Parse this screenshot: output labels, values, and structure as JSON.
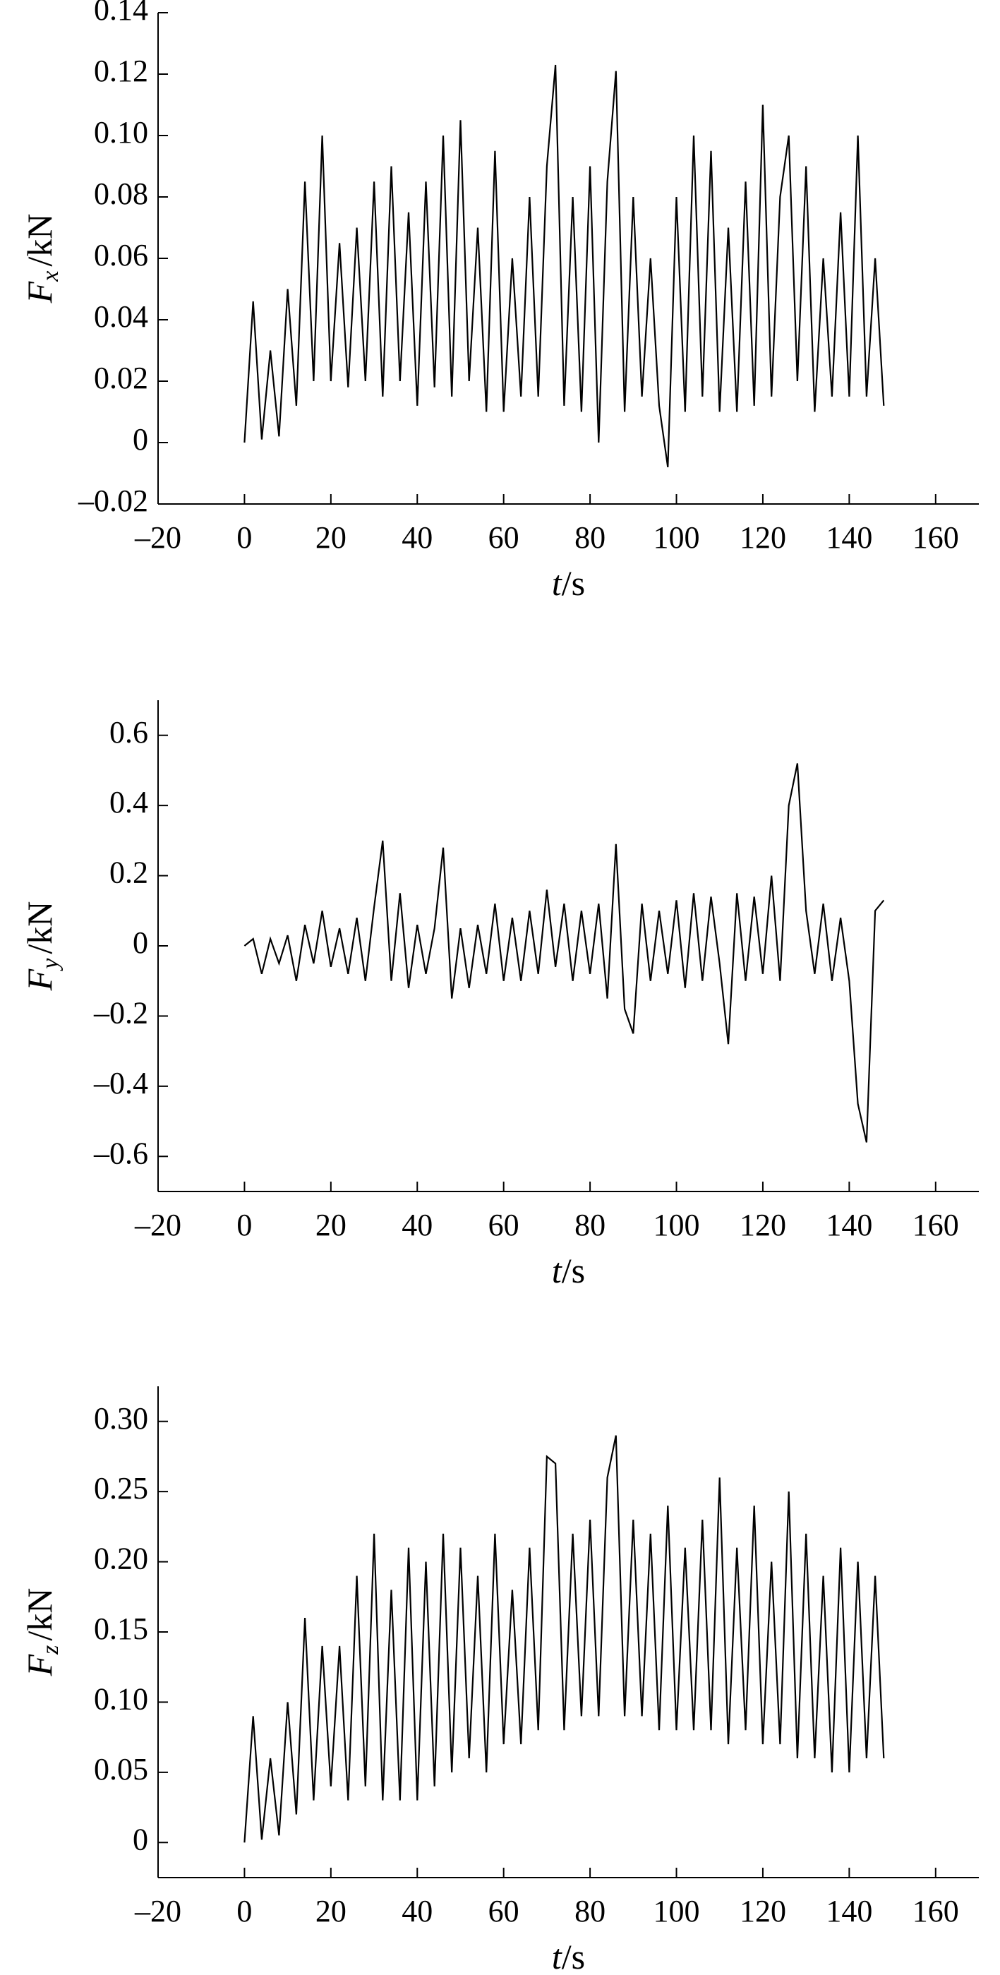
{
  "chart_data": [
    {
      "type": "line",
      "color": "#000000",
      "y_label": {
        "symbol": "F",
        "subscript": "x",
        "unit": "/kN"
      },
      "x_label": {
        "symbol": "t",
        "unit": "/s"
      },
      "xlim": [
        -20,
        170
      ],
      "ylim": [
        -0.02,
        0.14
      ],
      "xticks": [
        {
          "value": -20,
          "label": "–20"
        },
        0,
        20,
        40,
        60,
        80,
        100,
        120,
        140,
        160
      ],
      "yticks": [
        {
          "value": -0.02,
          "label": "–0.02"
        },
        0,
        0.02,
        0.04,
        0.06,
        0.08,
        {
          "value": 0.1,
          "label": "0.10"
        },
        0.12,
        0.14
      ],
      "x": [
        0,
        2,
        4,
        6,
        8,
        10,
        12,
        14,
        16,
        18,
        20,
        22,
        24,
        26,
        28,
        30,
        32,
        34,
        36,
        38,
        40,
        42,
        44,
        46,
        48,
        50,
        52,
        54,
        56,
        58,
        60,
        62,
        64,
        66,
        68,
        70,
        72,
        74,
        76,
        78,
        80,
        82,
        84,
        86,
        88,
        90,
        92,
        94,
        96,
        98,
        100,
        102,
        104,
        106,
        108,
        110,
        112,
        114,
        116,
        118,
        120,
        122,
        124,
        126,
        128,
        130,
        132,
        134,
        136,
        138,
        140,
        142,
        144,
        146,
        148
      ],
      "values": [
        0,
        0.046,
        0.001,
        0.03,
        0.002,
        0.05,
        0.012,
        0.085,
        0.02,
        0.1,
        0.02,
        0.065,
        0.018,
        0.07,
        0.02,
        0.085,
        0.015,
        0.09,
        0.02,
        0.075,
        0.012,
        0.085,
        0.018,
        0.1,
        0.015,
        0.105,
        0.02,
        0.07,
        0.01,
        0.095,
        0.01,
        0.06,
        0.015,
        0.08,
        0.015,
        0.09,
        0.123,
        0.012,
        0.08,
        0.01,
        0.09,
        0.0,
        0.085,
        0.121,
        0.01,
        0.08,
        0.015,
        0.06,
        0.012,
        -0.008,
        0.08,
        0.01,
        0.1,
        0.015,
        0.095,
        0.01,
        0.07,
        0.01,
        0.085,
        0.012,
        0.11,
        0.015,
        0.08,
        0.1,
        0.02,
        0.09,
        0.01,
        0.06,
        0.015,
        0.075,
        0.015,
        0.1,
        0.015,
        0.06,
        0.012
      ]
    },
    {
      "type": "line",
      "color": "#000000",
      "y_label": {
        "symbol": "F",
        "subscript": "y",
        "unit": "/kN"
      },
      "x_label": {
        "symbol": "t",
        "unit": "/s"
      },
      "xlim": [
        -20,
        170
      ],
      "ylim": [
        -0.7,
        0.7
      ],
      "xticks": [
        {
          "value": -20,
          "label": "–20"
        },
        0,
        20,
        40,
        60,
        80,
        100,
        120,
        140,
        160
      ],
      "yticks": [
        {
          "value": -0.6,
          "label": "–0.6"
        },
        {
          "value": -0.4,
          "label": "–0.4"
        },
        {
          "value": -0.2,
          "label": "–0.2"
        },
        0,
        0.2,
        0.4,
        0.6
      ],
      "x": [
        0,
        2,
        4,
        6,
        8,
        10,
        12,
        14,
        16,
        18,
        20,
        22,
        24,
        26,
        28,
        30,
        32,
        34,
        36,
        38,
        40,
        42,
        44,
        46,
        48,
        50,
        52,
        54,
        56,
        58,
        60,
        62,
        64,
        66,
        68,
        70,
        72,
        74,
        76,
        78,
        80,
        82,
        84,
        86,
        88,
        90,
        92,
        94,
        96,
        98,
        100,
        102,
        104,
        106,
        108,
        110,
        112,
        114,
        116,
        118,
        120,
        122,
        124,
        126,
        128,
        130,
        132,
        134,
        136,
        138,
        140,
        142,
        144,
        146,
        148
      ],
      "values": [
        0,
        0.02,
        -0.08,
        0.02,
        -0.05,
        0.03,
        -0.1,
        0.06,
        -0.05,
        0.1,
        -0.06,
        0.05,
        -0.08,
        0.08,
        -0.1,
        0.11,
        0.3,
        -0.1,
        0.15,
        -0.12,
        0.06,
        -0.08,
        0.05,
        0.28,
        -0.15,
        0.05,
        -0.12,
        0.06,
        -0.08,
        0.12,
        -0.1,
        0.08,
        -0.1,
        0.1,
        -0.08,
        0.16,
        -0.06,
        0.12,
        -0.1,
        0.1,
        -0.08,
        0.12,
        -0.15,
        0.29,
        -0.18,
        -0.25,
        0.12,
        -0.1,
        0.1,
        -0.08,
        0.13,
        -0.12,
        0.15,
        -0.1,
        0.14,
        -0.05,
        -0.28,
        0.15,
        -0.1,
        0.14,
        -0.08,
        0.2,
        -0.1,
        0.4,
        0.52,
        0.1,
        -0.08,
        0.12,
        -0.1,
        0.08,
        -0.1,
        -0.45,
        -0.56,
        0.1,
        0.13
      ]
    },
    {
      "type": "line",
      "color": "#000000",
      "y_label": {
        "symbol": "F",
        "subscript": "z",
        "unit": "/kN"
      },
      "x_label": {
        "symbol": "t",
        "unit": "/s"
      },
      "xlim": [
        -20,
        170
      ],
      "ylim": [
        -0.025,
        0.325
      ],
      "xticks": [
        {
          "value": -20,
          "label": "–20"
        },
        0,
        20,
        40,
        60,
        80,
        100,
        120,
        140,
        160
      ],
      "yticks": [
        0,
        0.05,
        {
          "value": 0.1,
          "label": "0.10"
        },
        0.15,
        {
          "value": 0.2,
          "label": "0.20"
        },
        0.25,
        {
          "value": 0.3,
          "label": "0.30"
        }
      ],
      "x": [
        0,
        2,
        4,
        6,
        8,
        10,
        12,
        14,
        16,
        18,
        20,
        22,
        24,
        26,
        28,
        30,
        32,
        34,
        36,
        38,
        40,
        42,
        44,
        46,
        48,
        50,
        52,
        54,
        56,
        58,
        60,
        62,
        64,
        66,
        68,
        70,
        72,
        74,
        76,
        78,
        80,
        82,
        84,
        86,
        88,
        90,
        92,
        94,
        96,
        98,
        100,
        102,
        104,
        106,
        108,
        110,
        112,
        114,
        116,
        118,
        120,
        122,
        124,
        126,
        128,
        130,
        132,
        134,
        136,
        138,
        140,
        142,
        144,
        146,
        148
      ],
      "values": [
        0,
        0.09,
        0.002,
        0.06,
        0.005,
        0.1,
        0.02,
        0.16,
        0.03,
        0.14,
        0.04,
        0.14,
        0.03,
        0.19,
        0.04,
        0.22,
        0.03,
        0.18,
        0.03,
        0.21,
        0.03,
        0.2,
        0.04,
        0.22,
        0.05,
        0.21,
        0.06,
        0.19,
        0.05,
        0.22,
        0.07,
        0.18,
        0.07,
        0.21,
        0.08,
        0.275,
        0.27,
        0.08,
        0.22,
        0.09,
        0.23,
        0.09,
        0.26,
        0.29,
        0.09,
        0.23,
        0.09,
        0.22,
        0.08,
        0.24,
        0.08,
        0.21,
        0.08,
        0.23,
        0.08,
        0.26,
        0.07,
        0.21,
        0.08,
        0.24,
        0.07,
        0.2,
        0.07,
        0.25,
        0.06,
        0.22,
        0.06,
        0.19,
        0.05,
        0.21,
        0.05,
        0.2,
        0.06,
        0.19,
        0.06
      ]
    }
  ]
}
